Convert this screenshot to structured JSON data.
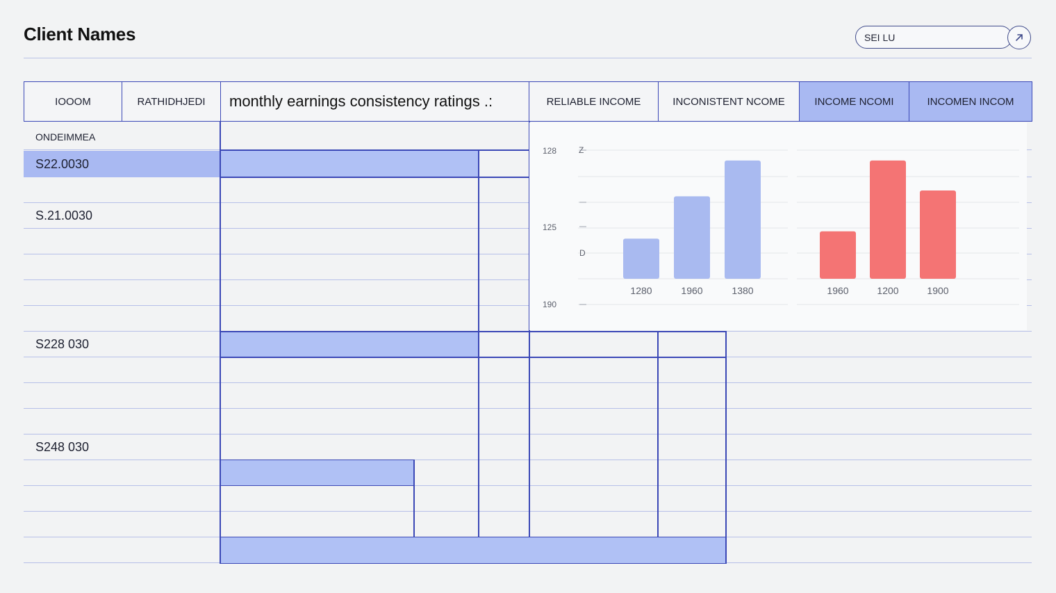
{
  "header": {
    "title": "Client Names",
    "search_value": "SEI LU"
  },
  "columns": [
    {
      "label": "IOOOM"
    },
    {
      "label": "RATHIDHJEDI"
    },
    {
      "label": "monthly earnings consistency ratings .:"
    },
    {
      "label": "RELIABLE INCOME"
    },
    {
      "label": "INCONISTENT NCOME"
    },
    {
      "label": "INCOME NCOMI"
    },
    {
      "label": "INCOMEN INCOM"
    }
  ],
  "table": {
    "group_label": "ONDEIMMEA",
    "rows": [
      {
        "label": "S22.0030"
      },
      {
        "label": "S.21.0030"
      },
      {
        "label": "S228 030"
      },
      {
        "label": "S248 030"
      }
    ]
  },
  "chart_data": {
    "type": "bar",
    "y_ticks": [
      "128",
      "Z",
      "125",
      "D",
      "190"
    ],
    "series": [
      {
        "name": "reliable",
        "color": "#a9baf0",
        "categories": [
          "1280",
          "1960",
          "1380"
        ],
        "values": [
          55,
          113,
          162
        ]
      },
      {
        "name": "inconsistent",
        "color": "#f47474",
        "categories": [
          "1960",
          "1200",
          "1900"
        ],
        "values": [
          65,
          162,
          121
        ]
      }
    ],
    "value_max": 200
  }
}
